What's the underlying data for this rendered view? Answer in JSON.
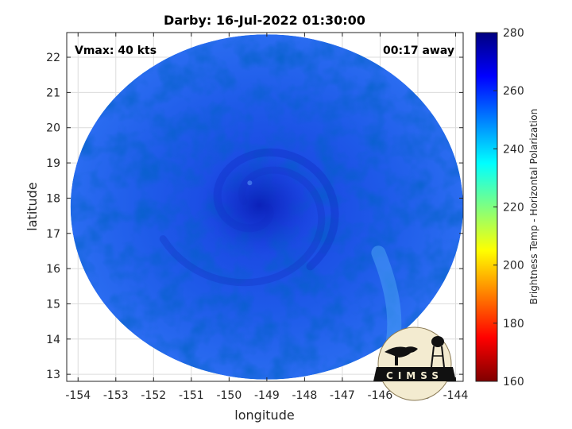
{
  "figure": {
    "title": "Darby: 16-Jul-2022 01:30:00",
    "vmax_label": "Vmax: 40 kts",
    "time_offset_label": "00:17 away",
    "logo_text": "CIMSS"
  },
  "chart_data": {
    "type": "heatmap",
    "title": "Darby: 16-Jul-2022 01:30:00",
    "xlabel": "longitude",
    "ylabel": "latitude",
    "xlim": [
      -154.3,
      -143.8
    ],
    "ylim": [
      12.8,
      22.7
    ],
    "xticks": [
      -154,
      -153,
      -152,
      -151,
      -150,
      -149,
      -148,
      -147,
      -146,
      -145,
      -144
    ],
    "yticks": [
      13,
      14,
      15,
      16,
      17,
      18,
      19,
      20,
      21,
      22
    ],
    "grid": true,
    "swath": {
      "center_lon": -149,
      "center_lat": 17.75,
      "radius_lon": 5.2,
      "radius_lat": 4.9
    },
    "storm_center": {
      "lon": -149.2,
      "lat": 17.8
    },
    "colorbar": {
      "label": "Brightness Temp - Horizontal Polarization",
      "min": 160,
      "max": 280,
      "ticks": [
        160,
        180,
        200,
        220,
        240,
        260,
        280
      ],
      "colormap": [
        "#7f0000",
        "#ff0000",
        "#ff8000",
        "#ffff00",
        "#80ff80",
        "#00ffff",
        "#0080ff",
        "#0000ff",
        "#00007f"
      ]
    }
  }
}
